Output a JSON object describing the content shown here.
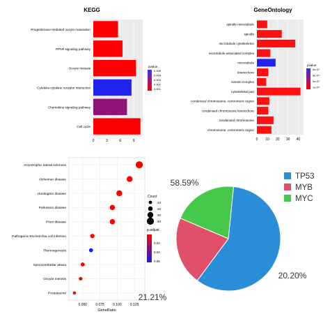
{
  "chart_data": [
    {
      "type": "bar",
      "orientation": "horizontal",
      "title": "KEGG",
      "categories": [
        "Progesterone-mediated oocyte maturation",
        "PPAR signaling pathway",
        "Oocyte meiosis",
        "Cytokine-cytokine receptor interaction",
        "Chemokine signaling pathway",
        "Cell cycle"
      ],
      "values": [
        5.5,
        6.5,
        9.5,
        8.5,
        7.5,
        10.5
      ],
      "pvalue": [
        0.001,
        0.001,
        0.001,
        0.005,
        0.003,
        0.001
      ],
      "xlim": [
        0,
        11
      ],
      "xticks": [
        "0",
        "3",
        "6",
        "9"
      ],
      "legend": {
        "title": "pvalue",
        "ticks": [
          "0.005",
          "0.004",
          "0.003",
          "0.002",
          "0.001"
        ],
        "colors": [
          "#3333ff",
          "#ff0000"
        ]
      }
    },
    {
      "type": "bar",
      "orientation": "horizontal",
      "title": "GeneOntology",
      "categories": [
        "spindle microtubule",
        "spindle",
        "microtubule cytoskeleton",
        "microtubule associated complex",
        "microtubule",
        "kinetochore",
        "kinesin complex",
        "cytoskeletal part",
        "condensed chromosome, centromeric region",
        "condensed chromosome kinetochore",
        "condensed chromosome",
        "chromosome, centromeric region"
      ],
      "values": [
        10,
        24,
        37,
        13,
        18,
        11,
        9,
        42,
        12,
        11,
        16,
        14
      ],
      "pvalue": [
        1e-07,
        1e-07,
        1e-07,
        1e-07,
        4e-07,
        1e-07,
        1e-07,
        1e-07,
        1e-07,
        1e-07,
        1e-07,
        1e-07
      ],
      "xlim": [
        0,
        45
      ],
      "xticks": [
        "0",
        "10",
        "20",
        "30",
        "40"
      ],
      "legend": {
        "title": "pvalue",
        "ticks": [
          "4e-07",
          "3e-07",
          "2e-07",
          "1e-07"
        ]
      }
    },
    {
      "type": "scatter",
      "xlabel": "GeneRatio",
      "categories": [
        "Amyotrophic lateral sclerosis",
        "Alzheimer disease",
        "Huntington disease",
        "Parkinson disease",
        "Prion disease",
        "Pathogenic Escherichia coli infection",
        "Thermogenesis",
        "Spinocerebellar ataxia",
        "Oocyte meiosis",
        "Proteasome"
      ],
      "gene_ratio": [
        0.132,
        0.118,
        0.103,
        0.093,
        0.093,
        0.064,
        0.062,
        0.05,
        0.047,
        0.038
      ],
      "count": [
        40,
        30,
        30,
        25,
        25,
        18,
        15,
        15,
        12,
        8
      ],
      "p_adjust": [
        0.01,
        0.01,
        0.01,
        0.01,
        0.01,
        0.01,
        0.06,
        0.01,
        0.01,
        0.01
      ],
      "xlim": [
        0.03,
        0.14
      ],
      "xticks": [
        "0.050",
        "0.075",
        "0.100",
        "0.125"
      ],
      "size_legend": {
        "title": "Count",
        "values": [
          "10",
          "20",
          "30",
          "40"
        ]
      },
      "color_legend": {
        "title": "p.adjust",
        "ticks": [
          "0.02",
          "0.04",
          "0.06"
        ]
      }
    },
    {
      "type": "pie",
      "labels": [
        "TP53",
        "MYB",
        "MYC"
      ],
      "values": [
        58.59,
        21.21,
        20.2
      ],
      "value_labels": [
        "58.59%",
        "21.21%",
        "20.20%"
      ],
      "colors": [
        "#2a8fd8",
        "#e0506a",
        "#46c84a"
      ]
    }
  ]
}
